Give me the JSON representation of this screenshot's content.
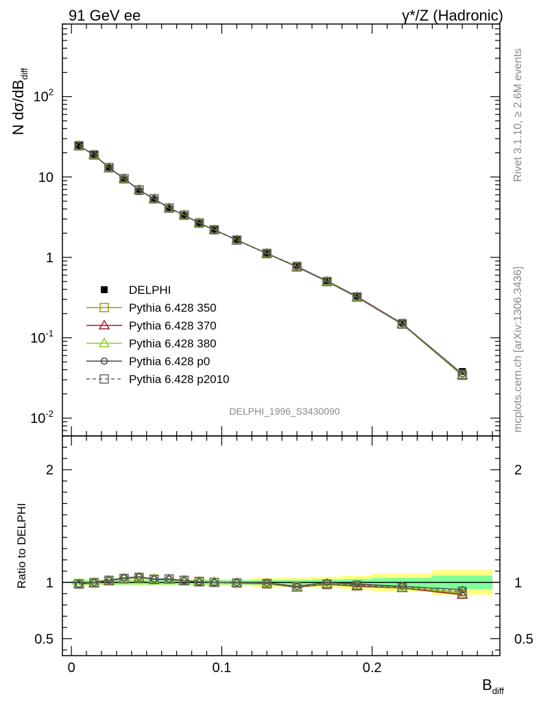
{
  "header": {
    "left": "91 GeV ee",
    "right": "γ*/Z (Hadronic)"
  },
  "side_text": {
    "rivet": "Rivet 3.1.10, ≥ 2.6M events",
    "mcplots": "mcplots.cern.ch [arXiv:1306.3436]"
  },
  "analysis_id": "DELPHI_1996_S3430090",
  "legend": [
    {
      "label": "DELPHI",
      "marker": "filled-square",
      "color": "#000000",
      "dashed": false
    },
    {
      "label": "Pythia 6.428 350",
      "marker": "open-square",
      "color": "#9a9a1e",
      "dashed": false
    },
    {
      "label": "Pythia 6.428 370",
      "marker": "open-triangle",
      "color": "#a01e2a",
      "dashed": false
    },
    {
      "label": "Pythia 6.428 380",
      "marker": "open-triangle",
      "color": "#86d61c",
      "dashed": false
    },
    {
      "label": "Pythia 6.428 p0",
      "marker": "open-circle",
      "color": "#444444",
      "dashed": false
    },
    {
      "label": "Pythia 6.428 p2010",
      "marker": "open-square",
      "color": "#666666",
      "dashed": true
    }
  ],
  "chart_data": [
    {
      "type": "line",
      "panel": "main",
      "ylabel": "N dσ/dB",
      "ylabel_sub": "diff",
      "yscale": "log",
      "ylim": [
        0.006,
        800
      ],
      "xlim": [
        -0.006,
        0.285
      ],
      "y_tick_labels": [
        {
          "value": 0.01,
          "base": "10",
          "exp": "-2"
        },
        {
          "value": 0.1,
          "base": "10",
          "exp": "-1"
        },
        {
          "value": 1,
          "base": "1",
          "exp": ""
        },
        {
          "value": 10,
          "base": "10",
          "exp": ""
        },
        {
          "value": 100,
          "base": "10",
          "exp": "2"
        }
      ],
      "x": [
        0.005,
        0.015,
        0.025,
        0.035,
        0.045,
        0.055,
        0.065,
        0.075,
        0.085,
        0.095,
        0.11,
        0.13,
        0.15,
        0.17,
        0.19,
        0.22,
        0.26
      ],
      "x_err": [
        0.005,
        0.005,
        0.005,
        0.005,
        0.005,
        0.005,
        0.005,
        0.005,
        0.005,
        0.005,
        0.01,
        0.01,
        0.01,
        0.01,
        0.01,
        0.02,
        0.02
      ],
      "series": [
        {
          "name": "DELPHI",
          "values": [
            24.8,
            18.9,
            12.8,
            9.2,
            6.6,
            5.2,
            4.0,
            3.3,
            2.65,
            2.2,
            1.65,
            1.13,
            0.8,
            0.51,
            0.33,
            0.155,
            0.038
          ]
        },
        {
          "name": "Pythia 6.428 350",
          "values": [
            24.5,
            18.8,
            13.1,
            9.5,
            6.9,
            5.35,
            4.1,
            3.35,
            2.68,
            2.2,
            1.64,
            1.11,
            0.77,
            0.5,
            0.32,
            0.148,
            0.034
          ]
        },
        {
          "name": "Pythia 6.428 370",
          "values": [
            24.4,
            18.8,
            13.0,
            9.5,
            6.9,
            5.3,
            4.1,
            3.35,
            2.67,
            2.2,
            1.64,
            1.12,
            0.76,
            0.5,
            0.318,
            0.147,
            0.034
          ]
        },
        {
          "name": "Pythia 6.428 380",
          "values": [
            24.5,
            18.9,
            13.1,
            9.5,
            6.9,
            5.35,
            4.12,
            3.36,
            2.68,
            2.21,
            1.65,
            1.12,
            0.77,
            0.5,
            0.322,
            0.148,
            0.0345
          ]
        },
        {
          "name": "Pythia 6.428 p0",
          "values": [
            24.4,
            18.9,
            13.1,
            9.6,
            6.9,
            5.35,
            4.12,
            3.35,
            2.66,
            2.2,
            1.65,
            1.12,
            0.77,
            0.51,
            0.326,
            0.15,
            0.0355
          ]
        },
        {
          "name": "Pythia 6.428 p2010",
          "values": [
            24.4,
            18.8,
            13.0,
            9.5,
            6.9,
            5.35,
            4.1,
            3.35,
            2.67,
            2.2,
            1.64,
            1.12,
            0.76,
            0.5,
            0.322,
            0.148,
            0.035
          ]
        }
      ]
    },
    {
      "type": "line",
      "panel": "ratio",
      "ylabel": "Ratio to DELPHI",
      "xlabel": "B",
      "xlabel_sub": "diff",
      "ylim": [
        0.35,
        2.3
      ],
      "xlim": [
        -0.006,
        0.285
      ],
      "y_tick_labels": [
        "0.5",
        "1",
        "2"
      ],
      "x_tick_labels": [
        "0",
        "0.1",
        "0.2"
      ],
      "x_tick_values": [
        0,
        0.1,
        0.2
      ],
      "y_tick_values": [
        0.5,
        1,
        2
      ],
      "band_green": [
        0.02,
        0.02,
        0.02,
        0.02,
        0.02,
        0.02,
        0.02,
        0.02,
        0.02,
        0.02,
        0.02,
        0.02,
        0.02,
        0.025,
        0.03,
        0.04,
        0.06
      ],
      "band_yellow": [
        0.03,
        0.03,
        0.03,
        0.03,
        0.03,
        0.03,
        0.03,
        0.03,
        0.03,
        0.03,
        0.03,
        0.04,
        0.04,
        0.05,
        0.06,
        0.08,
        0.11
      ],
      "series": [
        {
          "name": "Pythia 6.428 350",
          "values": [
            0.99,
            1.0,
            1.02,
            1.03,
            1.04,
            1.03,
            1.03,
            1.02,
            1.01,
            1.0,
            0.995,
            0.985,
            0.96,
            0.98,
            0.97,
            0.955,
            0.9
          ]
        },
        {
          "name": "Pythia 6.428 370",
          "values": [
            0.985,
            0.995,
            1.015,
            1.035,
            1.045,
            1.025,
            1.025,
            1.015,
            1.005,
            1.0,
            0.995,
            0.99,
            0.955,
            0.985,
            0.965,
            0.95,
            0.89
          ]
        },
        {
          "name": "Pythia 6.428 380",
          "values": [
            0.99,
            1.0,
            1.02,
            1.035,
            1.045,
            1.03,
            1.03,
            1.02,
            1.01,
            1.005,
            1.0,
            0.99,
            0.96,
            0.99,
            0.975,
            0.955,
            0.91
          ]
        },
        {
          "name": "Pythia 6.428 p0",
          "values": [
            0.985,
            1.0,
            1.02,
            1.04,
            1.05,
            1.03,
            1.03,
            1.015,
            1.005,
            1.0,
            1.0,
            0.995,
            0.965,
            1.0,
            0.985,
            0.965,
            0.935
          ]
        },
        {
          "name": "Pythia 6.428 p2010",
          "values": [
            0.985,
            0.995,
            1.015,
            1.035,
            1.045,
            1.025,
            1.03,
            1.015,
            1.005,
            1.0,
            0.995,
            0.99,
            0.96,
            0.985,
            0.975,
            0.955,
            0.92
          ]
        }
      ]
    }
  ]
}
